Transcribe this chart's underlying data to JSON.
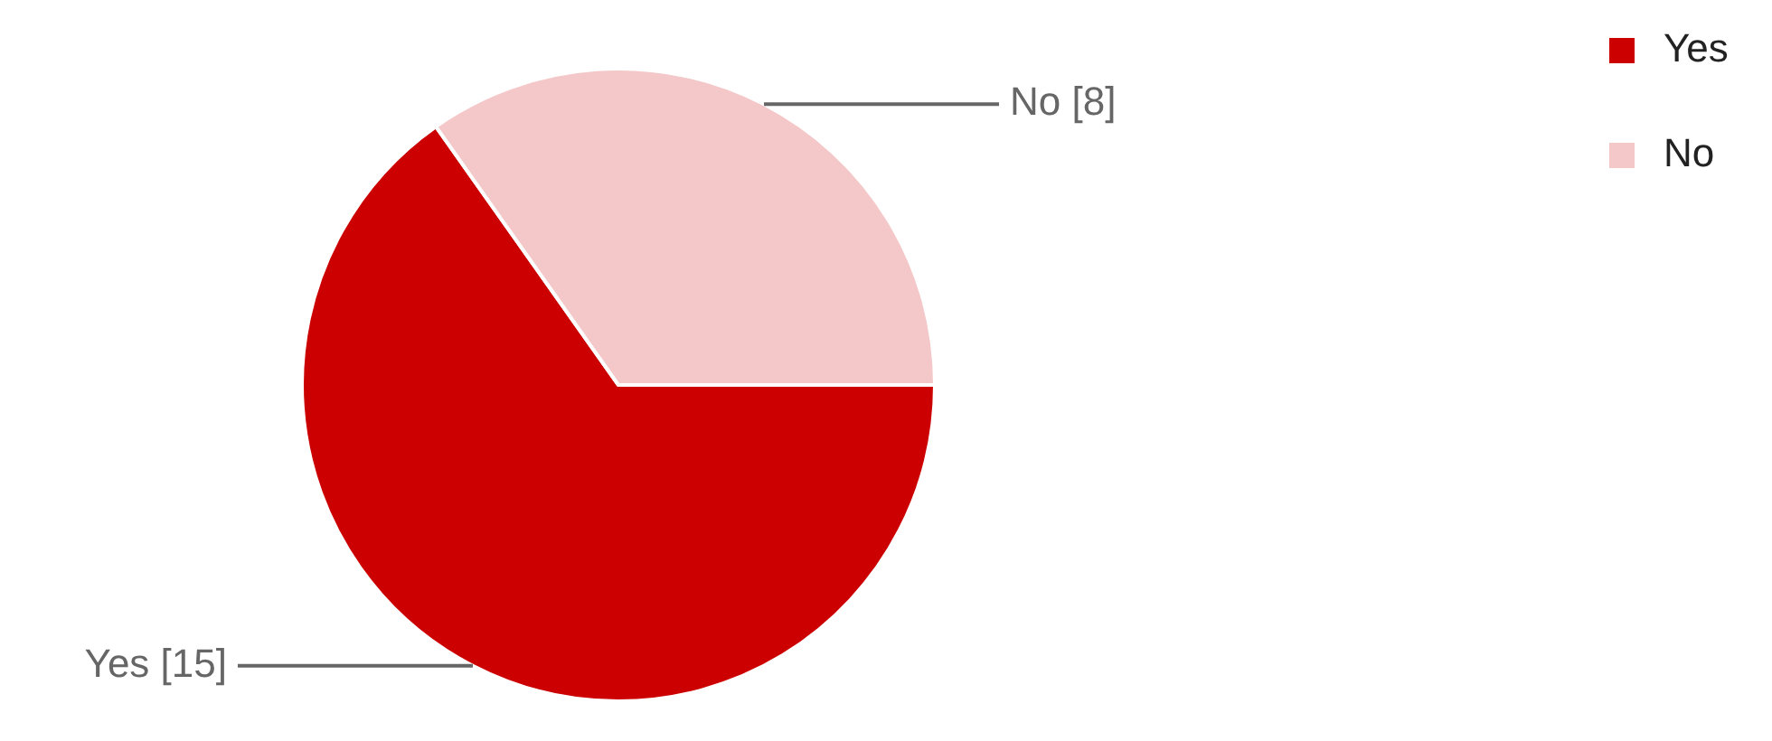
{
  "chart_data": {
    "type": "pie",
    "categories": [
      "Yes",
      "No"
    ],
    "values": [
      15,
      8
    ],
    "colors": [
      "#cc0000",
      "#f4c7c8"
    ],
    "value_labels": [
      "Yes [15]",
      "No [8]"
    ],
    "legend": "top right"
  }
}
